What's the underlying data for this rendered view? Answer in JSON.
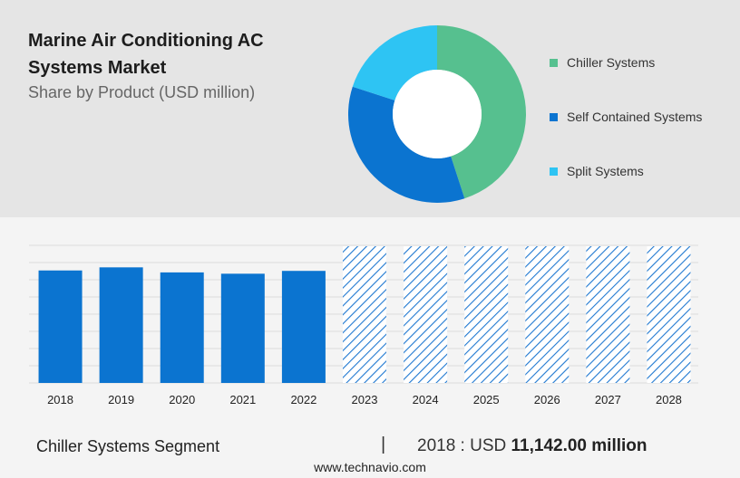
{
  "header": {
    "title": "Marine Air Conditioning AC Systems Market",
    "subtitle": "Share by Product (USD million)"
  },
  "legend": [
    {
      "label": "Chiller Systems",
      "color": "#56c08f"
    },
    {
      "label": "Self Contained Systems",
      "color": "#0b74d0"
    },
    {
      "label": "Split Systems",
      "color": "#2ec4f3"
    }
  ],
  "chart_data": [
    {
      "type": "pie",
      "subtype": "donut",
      "title": "Share by Product (USD million)",
      "labels": [
        "Chiller Systems",
        "Self Contained Systems",
        "Split Systems"
      ],
      "values": [
        45,
        35,
        20
      ],
      "colors": [
        "#56c08f",
        "#0b74d0",
        "#2ec4f3"
      ]
    },
    {
      "type": "bar",
      "categories": [
        "2018",
        "2019",
        "2020",
        "2021",
        "2022",
        "2023",
        "2024",
        "2025",
        "2026",
        "2027",
        "2028"
      ],
      "values": [
        11142,
        11450,
        10950,
        10820,
        11100,
        null,
        null,
        null,
        null,
        null,
        null
      ],
      "forecast_years": [
        "2023",
        "2024",
        "2025",
        "2026",
        "2027",
        "2028"
      ],
      "forecast_style": "hatched",
      "color": "#0b74d0",
      "grid": true
    }
  ],
  "footer": {
    "segment": "Chiller Systems Segment",
    "divider": "|",
    "year_prefix": "2018 : USD",
    "value_text": "11,142.00 million",
    "source": "www.technavio.com"
  }
}
